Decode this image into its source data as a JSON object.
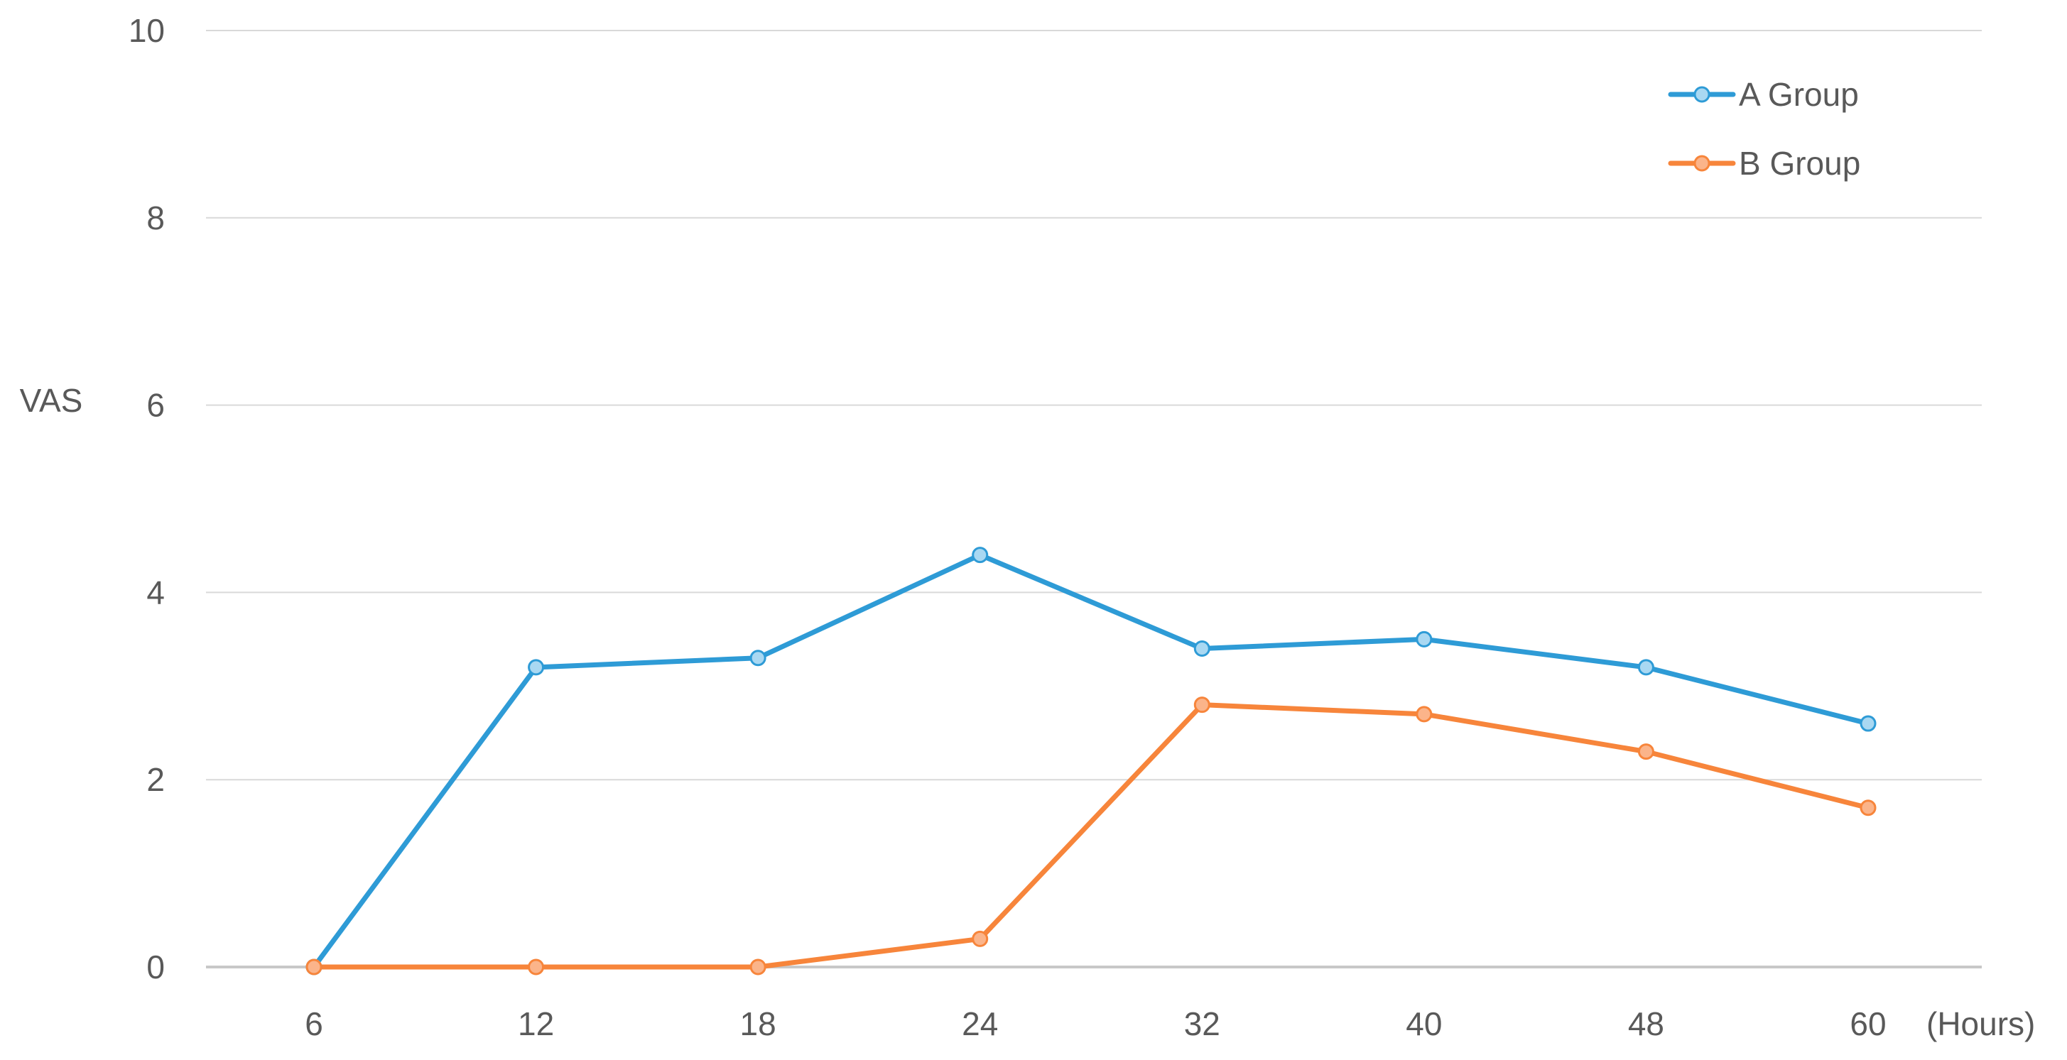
{
  "chart_data": {
    "type": "line",
    "title": "",
    "xlabel": "(Hours)",
    "ylabel": "VAS",
    "categories": [
      "6",
      "12",
      "18",
      "24",
      "32",
      "40",
      "48",
      "60"
    ],
    "ylim": [
      0,
      10
    ],
    "yticks": [
      "0",
      "2",
      "4",
      "6",
      "8",
      "10"
    ],
    "grid": true,
    "legend_position": "top-right",
    "series": [
      {
        "name": "A Group",
        "color": "#2E9BD6",
        "marker_fill": "#A9D8F2",
        "values": [
          0,
          3.2,
          3.3,
          4.4,
          3.4,
          3.5,
          3.2,
          2.6
        ]
      },
      {
        "name": "B Group",
        "color": "#F7853B",
        "marker_fill": "#FBB48A",
        "values": [
          0,
          0,
          0,
          0.3,
          2.8,
          2.7,
          2.3,
          1.7
        ]
      }
    ]
  }
}
